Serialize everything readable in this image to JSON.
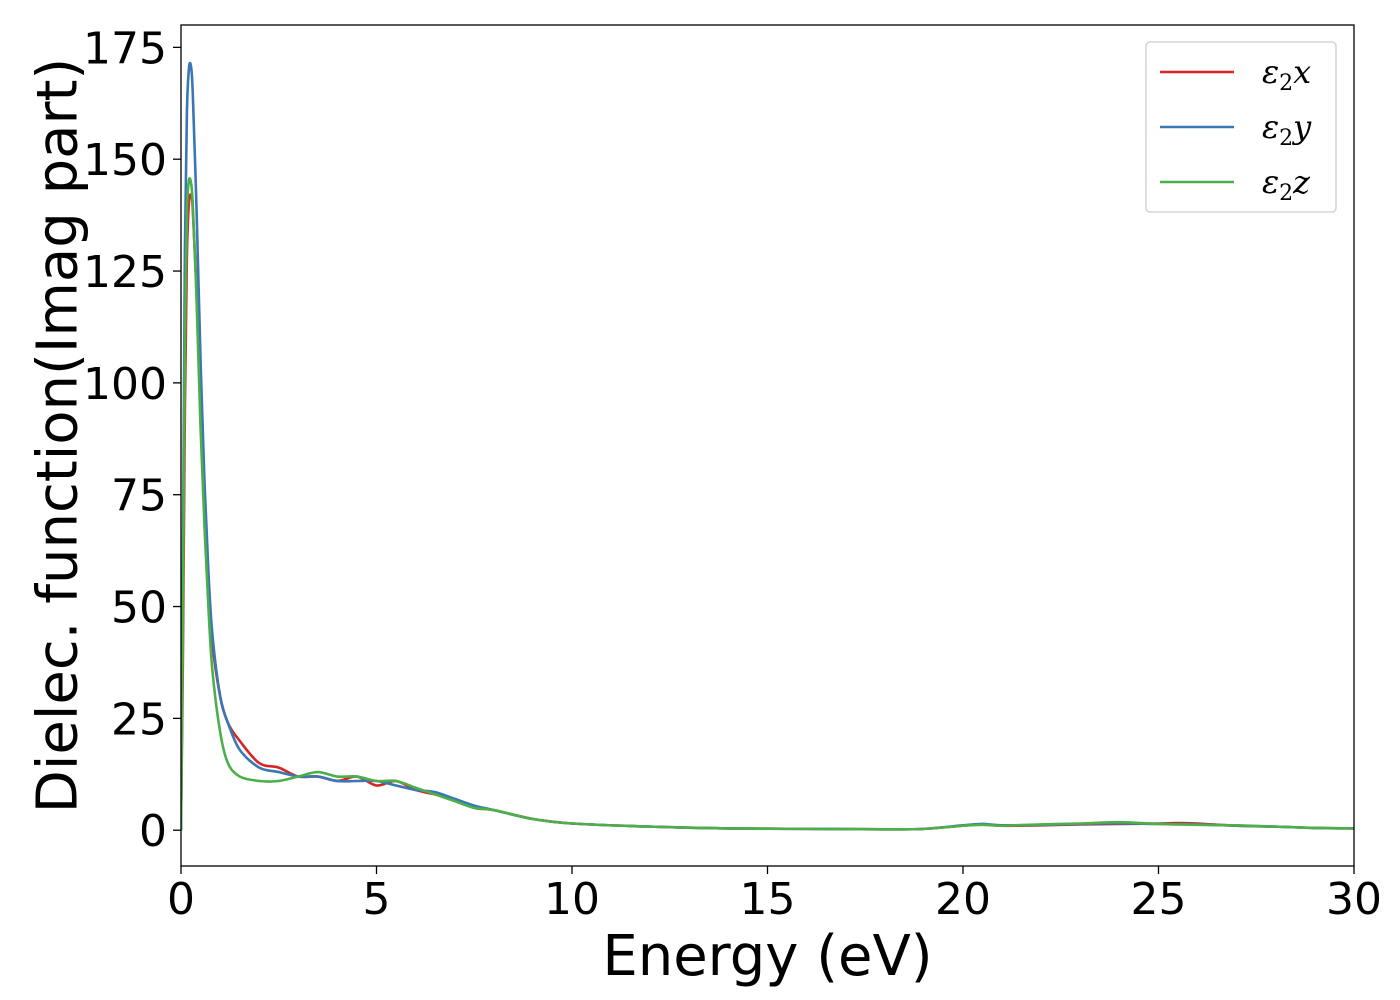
{
  "chart_data": {
    "type": "line",
    "title": "",
    "xlabel": "Energy (eV)",
    "ylabel": "Dielec. function(Imag part)",
    "xlim": [
      0,
      30
    ],
    "ylim": [
      -8,
      180
    ],
    "grid": false,
    "legend_position": "top-right",
    "xticks": [
      0,
      5,
      10,
      15,
      20,
      25,
      30
    ],
    "xtick_labels": [
      "0",
      "5",
      "10",
      "15",
      "20",
      "25",
      "30"
    ],
    "yticks": [
      0,
      25,
      50,
      75,
      100,
      125,
      150,
      175
    ],
    "ytick_labels": [
      "0",
      "25",
      "50",
      "75",
      "100",
      "125",
      "150",
      "175"
    ],
    "series": [
      {
        "name": "ε₂x",
        "legend_base": "ε",
        "legend_sub": "2",
        "legend_var": "x",
        "color": "#d62728",
        "x": [
          0,
          0.05,
          0.1,
          0.15,
          0.2,
          0.25,
          0.3,
          0.4,
          0.5,
          0.6,
          0.7,
          0.8,
          1.0,
          1.2,
          1.5,
          2.0,
          2.5,
          3.0,
          3.5,
          4.0,
          4.5,
          5.0,
          5.5,
          6.0,
          6.5,
          7.0,
          7.5,
          8.0,
          9.0,
          10.0,
          12.0,
          14.0,
          16.0,
          18.0,
          19.0,
          20.0,
          20.5,
          21.0,
          22.0,
          23.0,
          24.0,
          25.0,
          25.5,
          26.0,
          27.0,
          28.0,
          29.0,
          30.0
        ],
        "values": [
          0,
          40,
          95,
          128,
          140,
          142,
          139,
          120,
          95,
          72,
          55,
          42,
          30,
          24,
          20,
          15,
          14,
          12,
          12,
          11,
          12,
          10,
          11,
          9,
          8,
          7,
          5,
          4.5,
          2.5,
          1.5,
          0.8,
          0.4,
          0.3,
          0.2,
          0.3,
          1.0,
          1.3,
          1.0,
          1.1,
          1.3,
          1.4,
          1.5,
          1.6,
          1.5,
          1.0,
          0.8,
          0.5,
          0.4
        ]
      },
      {
        "name": "ε₂y",
        "legend_base": "ε",
        "legend_sub": "2",
        "legend_var": "y",
        "color": "#3a77b4",
        "x": [
          0,
          0.05,
          0.1,
          0.15,
          0.2,
          0.25,
          0.3,
          0.4,
          0.5,
          0.6,
          0.7,
          0.8,
          1.0,
          1.2,
          1.5,
          2.0,
          2.5,
          3.0,
          3.5,
          4.0,
          4.5,
          5.0,
          5.5,
          6.0,
          6.5,
          7.0,
          7.5,
          8.0,
          9.0,
          10.0,
          12.0,
          14.0,
          16.0,
          18.0,
          19.0,
          20.0,
          20.5,
          21.0,
          22.0,
          23.0,
          24.0,
          25.0,
          26.0,
          27.0,
          28.0,
          29.0,
          30.0
        ],
        "values": [
          0,
          60,
          130,
          160,
          170,
          171,
          165,
          138,
          105,
          78,
          58,
          44,
          30,
          24,
          18,
          14,
          13,
          12,
          12,
          11,
          11,
          11,
          10,
          9,
          8.5,
          7,
          5.5,
          4.5,
          2.5,
          1.5,
          0.8,
          0.4,
          0.3,
          0.2,
          0.3,
          1.1,
          1.4,
          1.1,
          1.2,
          1.4,
          1.5,
          1.4,
          1.3,
          1.0,
          0.8,
          0.5,
          0.4
        ]
      },
      {
        "name": "ε₂z",
        "legend_base": "ε",
        "legend_sub": "2",
        "legend_var": "z",
        "color": "#4daf4a",
        "x": [
          0,
          0.05,
          0.1,
          0.15,
          0.2,
          0.25,
          0.3,
          0.4,
          0.5,
          0.6,
          0.7,
          0.8,
          1.0,
          1.2,
          1.5,
          2.0,
          2.5,
          3.0,
          3.5,
          4.0,
          4.5,
          5.0,
          5.5,
          6.0,
          6.5,
          7.0,
          7.5,
          8.0,
          9.0,
          10.0,
          12.0,
          14.0,
          16.0,
          18.0,
          19.0,
          20.0,
          20.5,
          21.0,
          22.0,
          23.0,
          24.0,
          25.0,
          26.0,
          27.0,
          28.0,
          29.0,
          30.0
        ],
        "values": [
          0,
          50,
          110,
          138,
          145,
          145,
          140,
          118,
          90,
          68,
          50,
          36,
          22,
          15,
          12,
          11,
          11,
          12,
          13,
          12,
          12,
          11,
          11,
          9.5,
          8,
          6.5,
          5,
          4.5,
          2.5,
          1.5,
          0.8,
          0.4,
          0.3,
          0.2,
          0.3,
          1.0,
          1.2,
          1.0,
          1.3,
          1.5,
          1.8,
          1.4,
          1.2,
          1.1,
          0.8,
          0.5,
          0.4
        ]
      }
    ]
  }
}
